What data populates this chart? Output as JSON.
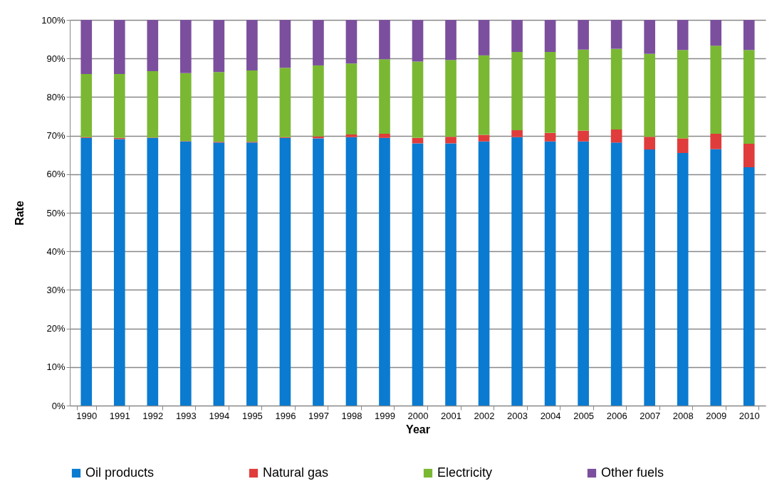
{
  "chart_data": {
    "type": "bar",
    "stacked": true,
    "xlabel": "Year",
    "ylabel": "Rate",
    "categories": [
      "1990",
      "1991",
      "1992",
      "1993",
      "1994",
      "1995",
      "1996",
      "1997",
      "1998",
      "1999",
      "2000",
      "2001",
      "2002",
      "2003",
      "2004",
      "2005",
      "2006",
      "2007",
      "2008",
      "2009",
      "2010"
    ],
    "series": [
      {
        "name": "Oil products",
        "color": "#0a7bd0",
        "values": [
          69.4,
          69.1,
          69.4,
          68.5,
          68.2,
          68.2,
          69.4,
          69.3,
          69.6,
          69.4,
          68.0,
          68.0,
          68.5,
          69.6,
          68.5,
          68.5,
          68.2,
          66.4,
          65.5,
          66.5,
          61.8
        ]
      },
      {
        "name": "Natural gas",
        "color": "#e03c3c",
        "values": [
          0.2,
          0.3,
          0.1,
          0.1,
          0.2,
          0.2,
          0.2,
          0.5,
          0.7,
          1.1,
          1.4,
          1.7,
          1.7,
          1.8,
          2.2,
          2.8,
          3.4,
          3.3,
          3.8,
          4.0,
          6.1
        ]
      },
      {
        "name": "Electricity",
        "color": "#7ab833",
        "values": [
          16.4,
          16.6,
          17.2,
          17.6,
          18.1,
          18.5,
          18.0,
          18.4,
          18.4,
          19.3,
          19.8,
          19.9,
          20.6,
          20.3,
          21.0,
          21.0,
          20.9,
          21.5,
          22.9,
          22.8,
          24.3
        ]
      },
      {
        "name": "Other fuels",
        "color": "#7b4f9d",
        "values": [
          14.0,
          14.0,
          13.3,
          13.8,
          13.5,
          13.1,
          12.4,
          11.8,
          11.3,
          10.2,
          10.8,
          10.4,
          9.2,
          8.3,
          8.3,
          7.7,
          7.5,
          8.8,
          7.8,
          6.7,
          7.8
        ]
      }
    ],
    "ylim": [
      0,
      100
    ],
    "yticks": [
      {
        "value": 0,
        "label": "0%"
      },
      {
        "value": 10,
        "label": "10%"
      },
      {
        "value": 20,
        "label": "20%"
      },
      {
        "value": 30,
        "label": "30%"
      },
      {
        "value": 40,
        "label": "40%"
      },
      {
        "value": 50,
        "label": "50%"
      },
      {
        "value": 60,
        "label": "60%"
      },
      {
        "value": 70,
        "label": "70%"
      },
      {
        "value": 80,
        "label": "80%"
      },
      {
        "value": 90,
        "label": "90%"
      },
      {
        "value": 100,
        "label": "100%"
      }
    ],
    "grid": "y",
    "legend": "bottom"
  }
}
